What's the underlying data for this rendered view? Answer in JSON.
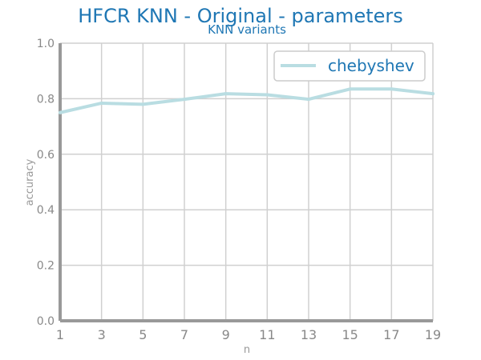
{
  "colors": {
    "title": "#1f77b4",
    "axis": "#999999",
    "grid": "#d0d0d0",
    "tick_label": "#888888",
    "series": "#b9dde2",
    "legend_text": "#1f77b4",
    "legend_border": "#cccccc"
  },
  "chart_data": {
    "type": "line",
    "title": "HFCR KNN - Original - parameters",
    "subtitle": "KNN variants",
    "xlabel": "n",
    "ylabel": "accuracy",
    "x": [
      1,
      3,
      5,
      7,
      9,
      11,
      13,
      15,
      17,
      19
    ],
    "xticks": [
      "1",
      "3",
      "5",
      "7",
      "9",
      "11",
      "13",
      "15",
      "17",
      "19"
    ],
    "yticks": [
      "0.0",
      "0.2",
      "0.4",
      "0.6",
      "0.8",
      "1.0"
    ],
    "xlim": [
      1,
      19
    ],
    "ylim": [
      0,
      1
    ],
    "grid": true,
    "legend_position": "top-right",
    "series": [
      {
        "name": "chebyshev",
        "values": [
          0.75,
          0.784,
          0.78,
          0.798,
          0.818,
          0.814,
          0.798,
          0.835,
          0.835,
          0.818
        ]
      }
    ]
  }
}
